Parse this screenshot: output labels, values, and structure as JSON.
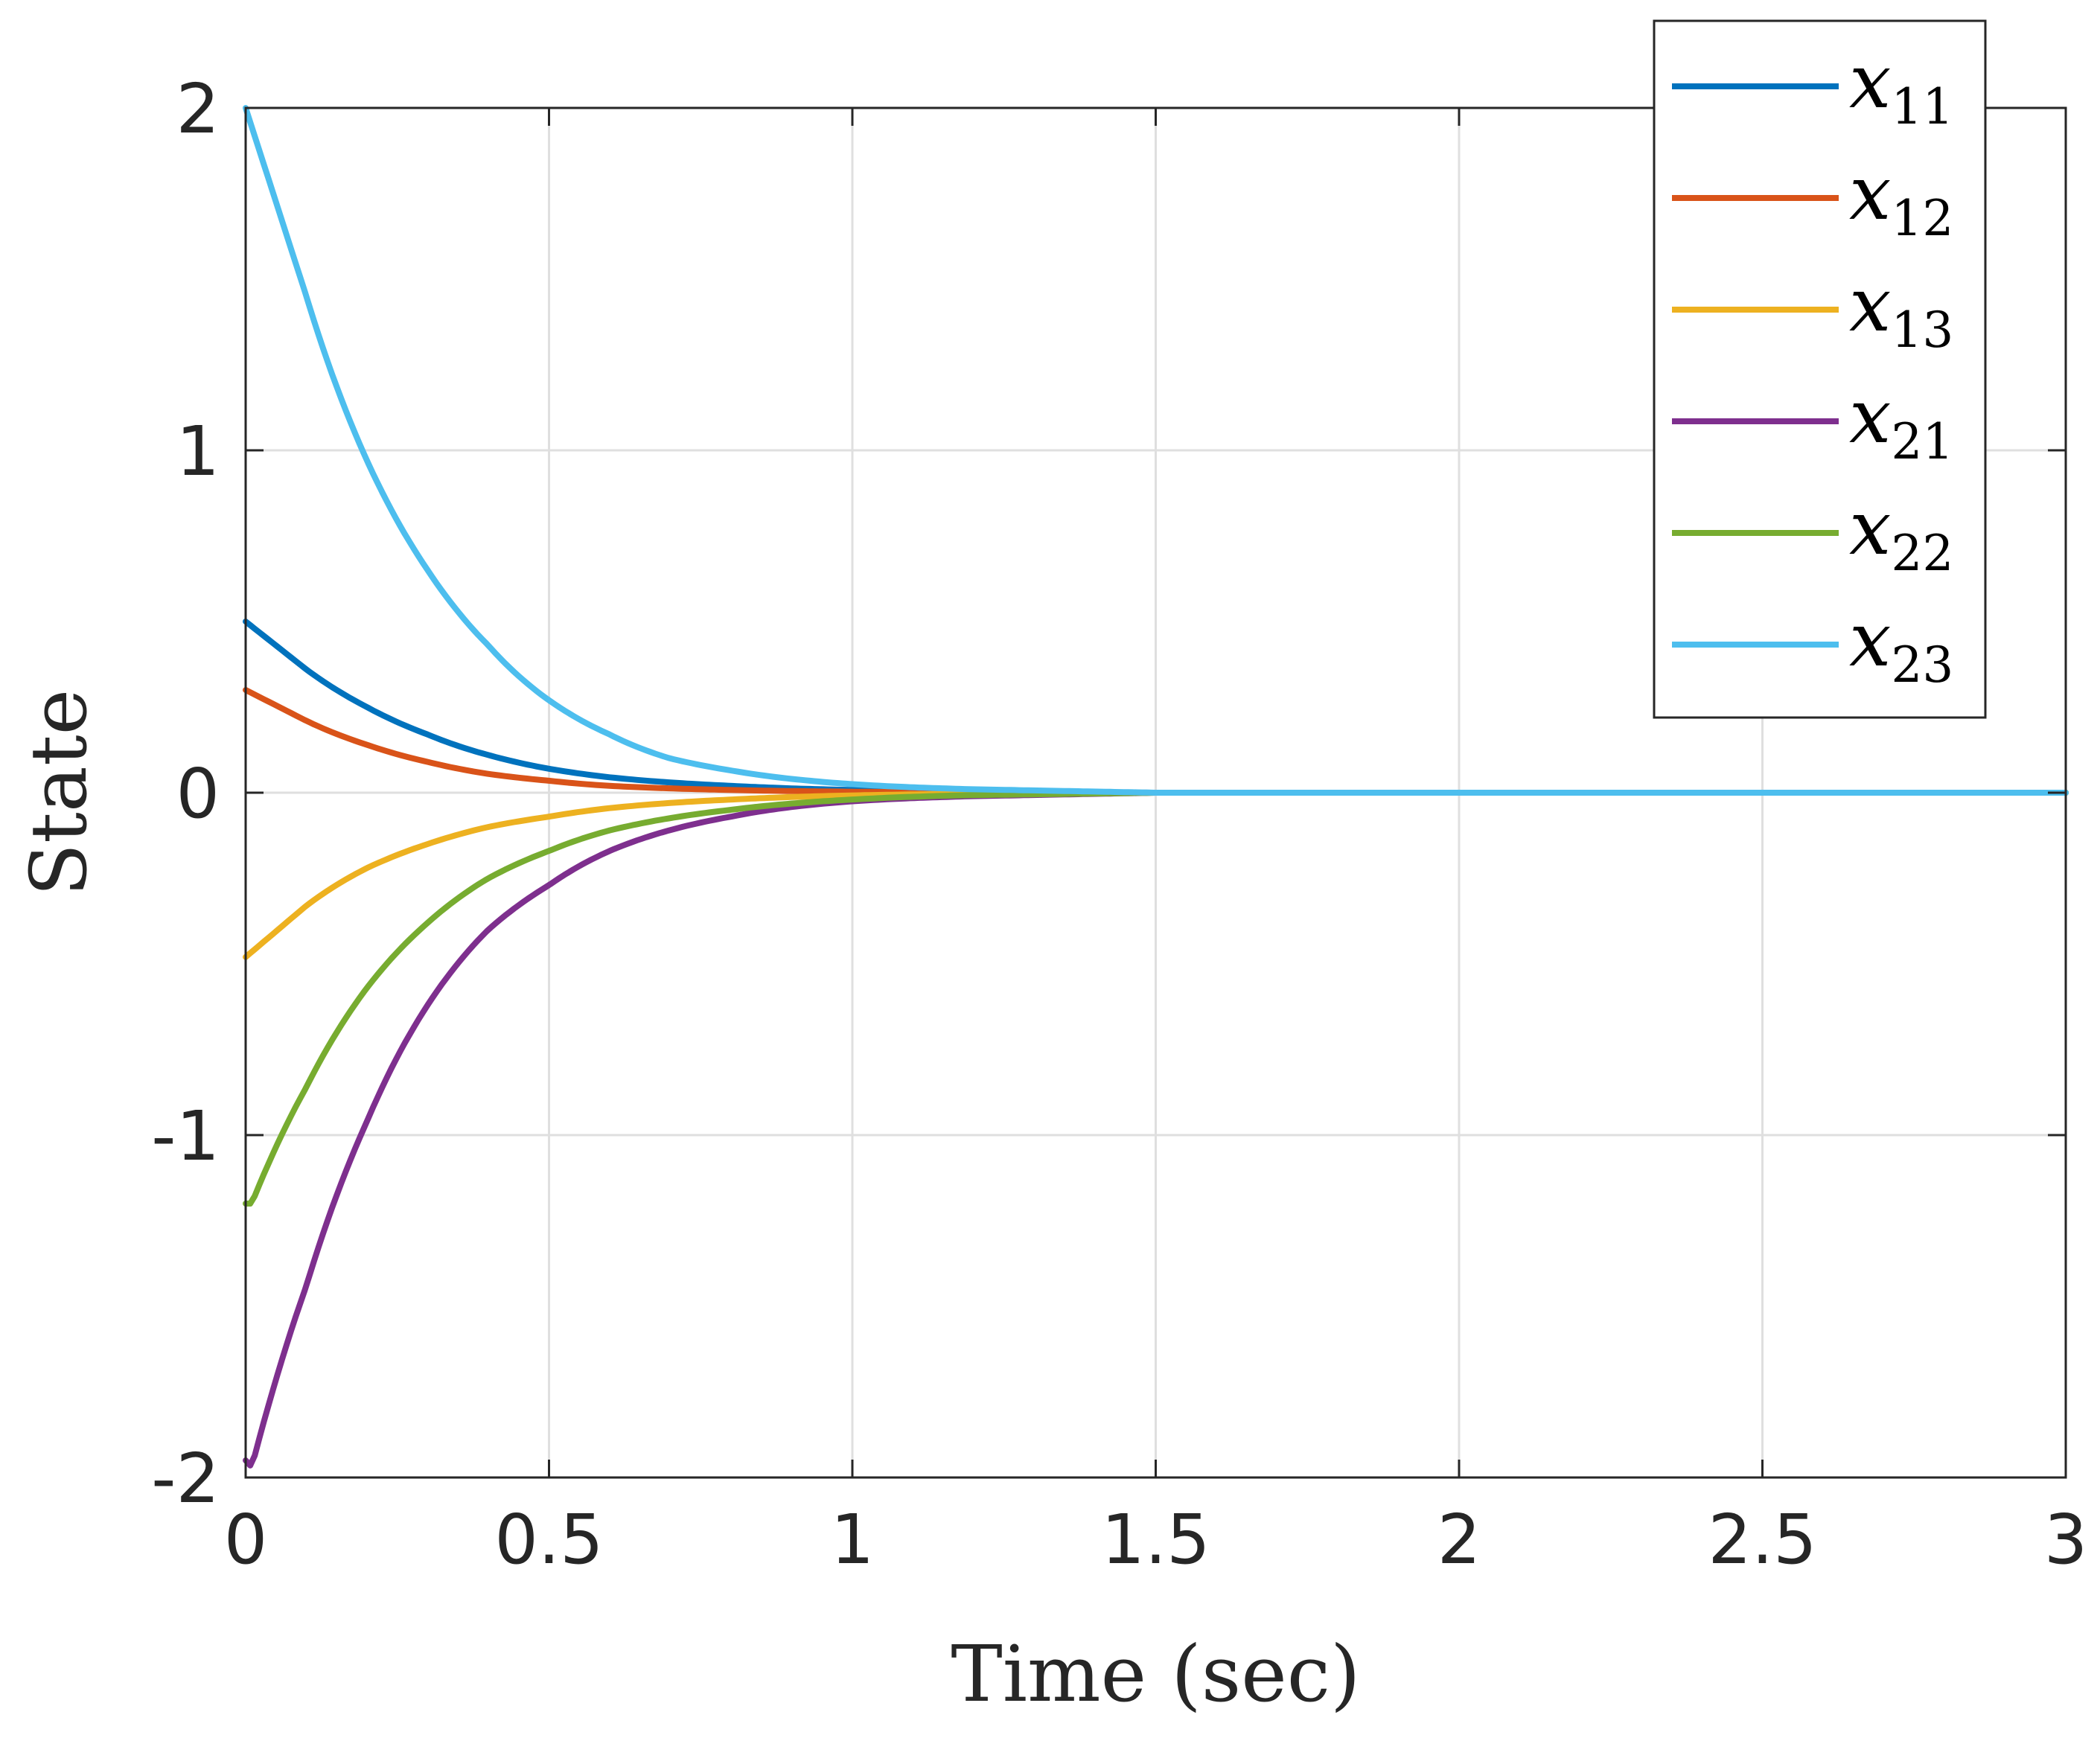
{
  "chart_data": {
    "type": "line",
    "title": "",
    "xlabel": "Time (sec)",
    "ylabel": "State",
    "xlim": [
      0,
      3
    ],
    "ylim": [
      -2,
      2
    ],
    "xticks": [
      0,
      0.5,
      1,
      1.5,
      2,
      2.5,
      3
    ],
    "xtick_labels": [
      "0",
      "0.5",
      "1",
      "1.5",
      "2",
      "2.5",
      "3"
    ],
    "yticks": [
      -2,
      -1,
      0,
      1,
      2
    ],
    "ytick_labels": [
      "-2",
      "-1",
      "0",
      "1",
      "2"
    ],
    "grid": true,
    "legend_position": "top-right",
    "x_end": 3,
    "series": [
      {
        "name": "x11",
        "symbol": "x",
        "subscript": "11",
        "color": "#0072BD",
        "x": [
          0,
          0.1,
          0.2,
          0.3,
          0.4,
          0.5,
          0.6,
          0.8,
          1.0,
          1.2,
          1.5,
          2.0,
          3.0
        ],
        "y": [
          0.5,
          0.36,
          0.25,
          0.17,
          0.11,
          0.07,
          0.045,
          0.02,
          0.008,
          0.003,
          0.0,
          0.0,
          0.0
        ]
      },
      {
        "name": "x12",
        "symbol": "x",
        "subscript": "12",
        "color": "#D95319",
        "x": [
          0,
          0.1,
          0.2,
          0.3,
          0.4,
          0.5,
          0.6,
          0.8,
          1.0,
          1.2,
          1.5,
          2.0,
          3.0
        ],
        "y": [
          0.3,
          0.21,
          0.14,
          0.09,
          0.055,
          0.035,
          0.02,
          0.008,
          0.003,
          0.001,
          0.0,
          0.0,
          0.0
        ]
      },
      {
        "name": "x13",
        "symbol": "x",
        "subscript": "13",
        "color": "#EDB120",
        "x": [
          0,
          0.1,
          0.2,
          0.3,
          0.4,
          0.5,
          0.6,
          0.8,
          1.0,
          1.2,
          1.5,
          2.0,
          3.0
        ],
        "y": [
          -0.48,
          -0.33,
          -0.22,
          -0.15,
          -0.1,
          -0.07,
          -0.045,
          -0.02,
          -0.008,
          -0.003,
          0.0,
          0.0,
          0.0
        ]
      },
      {
        "name": "x21",
        "symbol": "x",
        "subscript": "21",
        "color": "#7E2F8E",
        "x": [
          0,
          0.01,
          0.1,
          0.2,
          0.3,
          0.4,
          0.5,
          0.6,
          0.8,
          1.0,
          1.2,
          1.5,
          2.0,
          3.0
        ],
        "y": [
          -1.95,
          -1.97,
          -1.44,
          -0.96,
          -0.62,
          -0.4,
          -0.27,
          -0.17,
          -0.07,
          -0.025,
          -0.01,
          0.0,
          0.0,
          0.0
        ]
      },
      {
        "name": "x22",
        "symbol": "x",
        "subscript": "22",
        "color": "#77AC30",
        "x": [
          0,
          0.01,
          0.1,
          0.2,
          0.3,
          0.4,
          0.5,
          0.6,
          0.8,
          1.0,
          1.2,
          1.5,
          2.0,
          3.0
        ],
        "y": [
          -1.2,
          -1.2,
          -0.86,
          -0.57,
          -0.38,
          -0.25,
          -0.17,
          -0.11,
          -0.05,
          -0.02,
          -0.007,
          0.0,
          0.0,
          0.0
        ]
      },
      {
        "name": "x23",
        "symbol": "x",
        "subscript": "23",
        "color": "#4DBEEE",
        "x": [
          0,
          0.1,
          0.2,
          0.3,
          0.4,
          0.5,
          0.6,
          0.7,
          0.8,
          1.0,
          1.2,
          1.5,
          2.0,
          3.0
        ],
        "y": [
          2.0,
          1.45,
          0.97,
          0.65,
          0.43,
          0.27,
          0.17,
          0.1,
          0.065,
          0.025,
          0.01,
          0.0,
          0.0,
          0.0
        ]
      }
    ]
  }
}
